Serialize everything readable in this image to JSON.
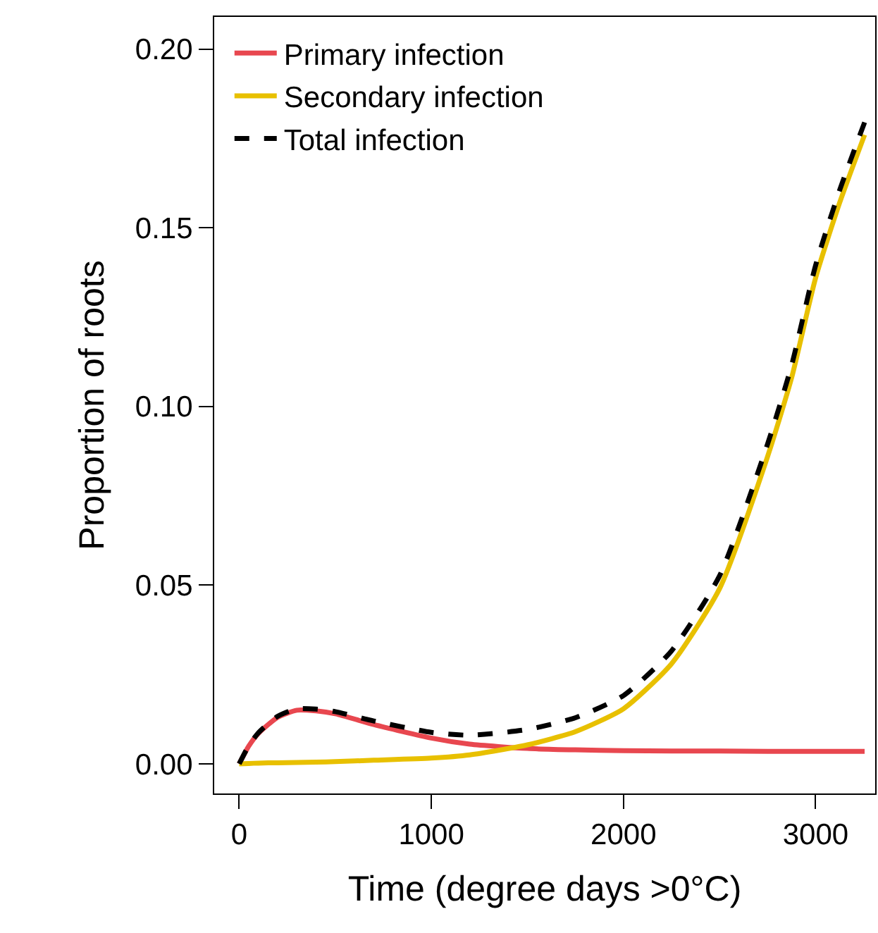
{
  "chart_data": {
    "type": "line",
    "xlabel": "Time (degree days >0°C)",
    "ylabel": "Proportion of roots",
    "x": [
      0,
      50,
      100,
      200,
      300,
      400,
      500,
      700,
      1000,
      1200,
      1500,
      1750,
      2000,
      2250,
      2500,
      2750,
      2875,
      3000,
      3125,
      3255
    ],
    "series": [
      {
        "name": "Primary infection",
        "color": "#e8474f",
        "values": [
          0,
          0.005,
          0.0085,
          0.013,
          0.015,
          0.0148,
          0.014,
          0.011,
          0.0072,
          0.0055,
          0.0043,
          0.0039,
          0.0037,
          0.0036,
          0.0036,
          0.0035,
          0.0035,
          0.0035,
          0.0035,
          0.0035
        ]
      },
      {
        "name": "Secondary infection",
        "color": "#e8c000",
        "values": [
          0,
          0.0001,
          0.0002,
          0.0003,
          0.0004,
          0.0005,
          0.0006,
          0.001,
          0.0016,
          0.0025,
          0.0053,
          0.009,
          0.0154,
          0.028,
          0.049,
          0.086,
          0.108,
          0.136,
          0.157,
          0.176
        ]
      },
      {
        "name": "Total infection",
        "color": "#000000",
        "line_style": "dashed",
        "values": [
          0,
          0.0051,
          0.0087,
          0.0133,
          0.0154,
          0.0153,
          0.0146,
          0.012,
          0.0088,
          0.008,
          0.0096,
          0.0129,
          0.0191,
          0.0316,
          0.0526,
          0.0895,
          0.1115,
          0.1395,
          0.1605,
          0.1795
        ]
      }
    ],
    "xlim": [
      -130,
      3310
    ],
    "ylim": [
      -0.0083,
      0.209
    ],
    "xticks": [
      0,
      1000,
      2000,
      3000
    ],
    "yticks": [
      {
        "value": 0,
        "label": "0.00"
      },
      {
        "value": 0.05,
        "label": "0.05"
      },
      {
        "value": 0.1,
        "label": "0.10"
      },
      {
        "value": 0.15,
        "label": "0.15"
      },
      {
        "value": 0.2,
        "label": "0.20"
      }
    ],
    "legend": "top left",
    "line_style": "solid",
    "marker": "none"
  }
}
